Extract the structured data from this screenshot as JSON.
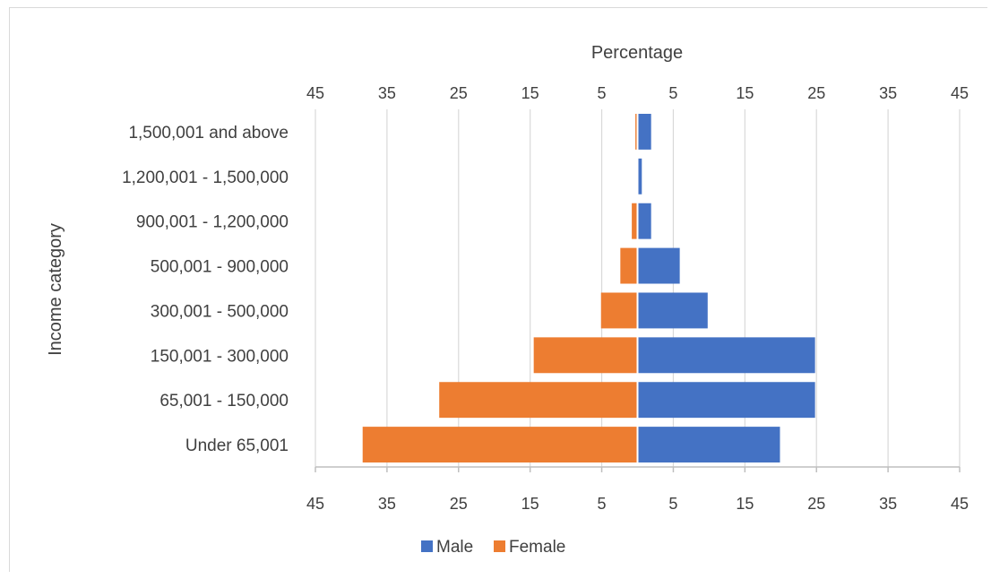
{
  "chart_data": {
    "type": "bar",
    "orientation": "horizontal",
    "layout": "population-pyramid",
    "title": "Percentage",
    "xlabel": "Percentage",
    "ylabel": "Income category",
    "categories": [
      "1,500,001 and above",
      "1,200,001 - 1,500,000",
      "900,001 - 1,200,000",
      "500,001 - 900,000",
      "300,001 - 500,000",
      "150,001 - 300,000",
      "65,001 - 150,000",
      "Under 65,001"
    ],
    "series": [
      {
        "name": "Male",
        "color": "#4472c4",
        "values": [
          1.9,
          0.6,
          1.9,
          5.9,
          9.8,
          24.8,
          24.8,
          19.9
        ]
      },
      {
        "name": "Female",
        "color": "#ed7d31",
        "values": [
          0.3,
          0.1,
          0.8,
          2.4,
          5.1,
          14.5,
          27.7,
          38.4
        ]
      }
    ],
    "xlim": [
      -45,
      45
    ],
    "tick_values": [
      -45,
      -35,
      -25,
      -15,
      -5,
      5,
      15,
      25,
      35,
      45
    ],
    "tick_labels": [
      "45",
      "35",
      "25",
      "15",
      "5",
      "5",
      "15",
      "25",
      "35",
      "45"
    ],
    "grid": true,
    "legend_position": "bottom"
  }
}
